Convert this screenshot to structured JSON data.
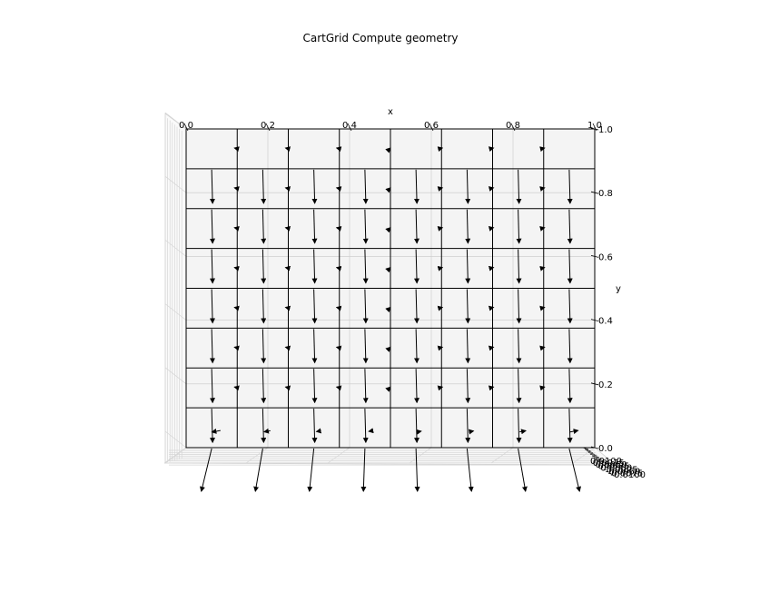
{
  "chart_data": {
    "type": "quiver3d",
    "title": "CartGrid Compute geometry",
    "xlabel": "x",
    "ylabel": "y",
    "zlabel": "",
    "xlim": [
      0.0,
      1.0
    ],
    "ylim": [
      0.0,
      1.0
    ],
    "x_ticks": [
      "0.0",
      "0.2",
      "0.4",
      "0.6",
      "0.8",
      "1.0"
    ],
    "y_ticks": [
      "0.0",
      "0.2",
      "0.4",
      "0.6",
      "0.8",
      "1.0"
    ],
    "z_ticks": [
      "0.0100",
      "0.0075",
      "0.0050",
      "0.0025",
      "0.0000",
      "-0.0025",
      "-0.0050",
      "-0.0075",
      "-0.0100"
    ],
    "grid": true,
    "grid_lines_x": [
      0.0,
      0.125,
      0.25,
      0.375,
      0.5,
      0.625,
      0.75,
      0.875,
      1.0
    ],
    "grid_lines_y": [
      0.0,
      0.125,
      0.25,
      0.375,
      0.5,
      0.625,
      0.75,
      0.875,
      1.0
    ],
    "cell_centers_x": [
      0.0625,
      0.1875,
      0.3125,
      0.4375,
      0.5625,
      0.6875,
      0.8125,
      0.9375
    ],
    "cell_centers_y": [
      0.0625,
      0.1875,
      0.3125,
      0.4375,
      0.5625,
      0.6875,
      0.8125,
      0.9375
    ],
    "face_x_positions": [
      0.0625,
      0.1875,
      0.3125,
      0.4375,
      0.5625,
      0.6875,
      0.8125,
      0.9375
    ],
    "face_y_positions": [
      0.0,
      0.125,
      0.25,
      0.375,
      0.5,
      0.625,
      0.75,
      0.875
    ],
    "edge_x_positions": [
      0.125,
      0.25,
      0.375,
      0.5,
      0.625,
      0.75,
      0.875
    ],
    "edge_y_positions": [
      0.0625,
      0.1875,
      0.3125,
      0.4375,
      0.5625,
      0.6875,
      0.8125,
      0.9375
    ],
    "arrow_color": "#000000"
  }
}
